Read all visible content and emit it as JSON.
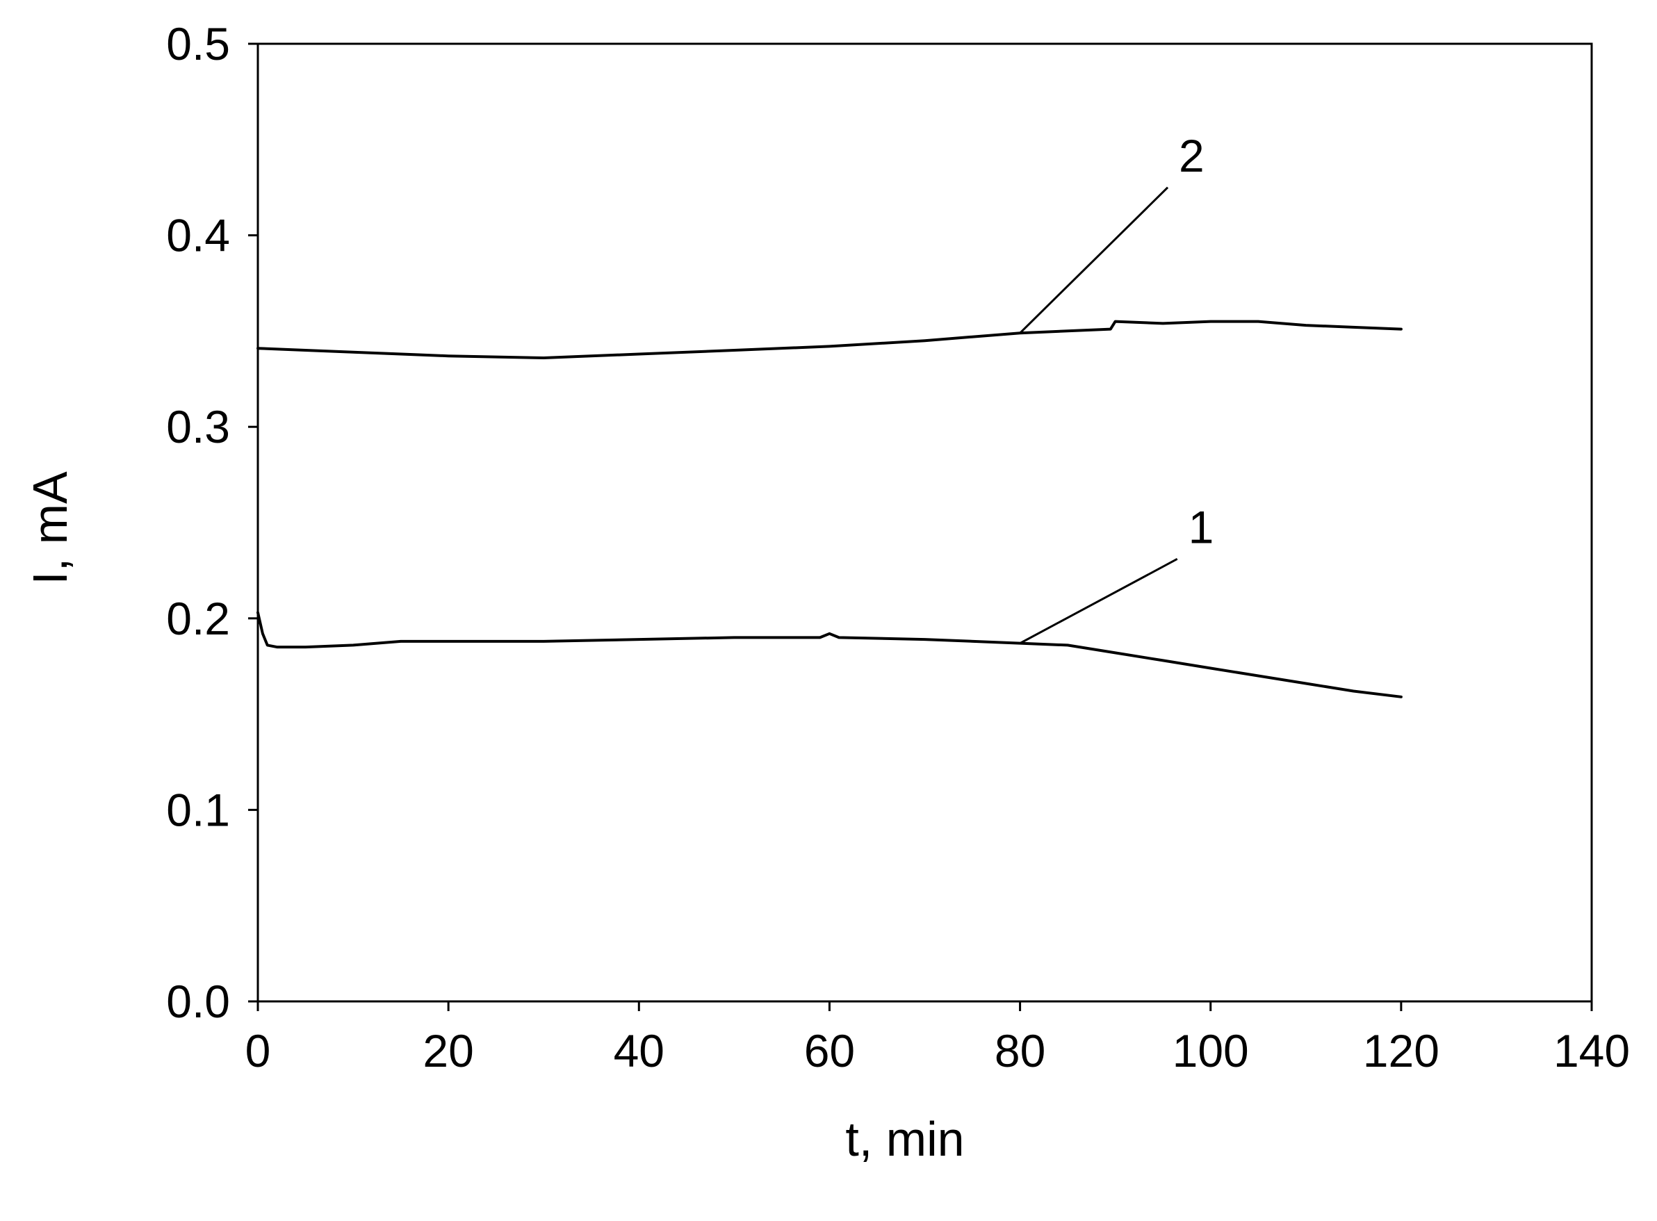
{
  "chart_data": {
    "type": "line",
    "title": "",
    "xlabel": "t, min",
    "ylabel": "I, mA",
    "xlim": [
      0,
      140
    ],
    "ylim": [
      0.0,
      0.5
    ],
    "x_ticks": [
      0,
      20,
      40,
      60,
      80,
      100,
      120,
      140
    ],
    "x_tick_labels": [
      "0",
      "20",
      "40",
      "60",
      "80",
      "100",
      "120",
      "140"
    ],
    "y_ticks": [
      0.0,
      0.1,
      0.2,
      0.3,
      0.4,
      0.5
    ],
    "y_tick_labels": [
      "0.0",
      "0.1",
      "0.2",
      "0.3",
      "0.4",
      "0.5"
    ],
    "grid": false,
    "legend": "none",
    "line_color": "#000000",
    "series": [
      {
        "label": "1",
        "x": [
          0,
          0.5,
          1,
          2,
          5,
          10,
          15,
          20,
          30,
          40,
          50,
          59,
          60,
          61,
          70,
          80,
          85,
          90,
          95,
          100,
          105,
          110,
          115,
          120
        ],
        "y": [
          0.203,
          0.192,
          0.186,
          0.185,
          0.185,
          0.186,
          0.188,
          0.188,
          0.188,
          0.189,
          0.19,
          0.19,
          0.192,
          0.19,
          0.189,
          0.187,
          0.186,
          0.182,
          0.178,
          0.174,
          0.17,
          0.166,
          0.162,
          0.159
        ]
      },
      {
        "label": "2",
        "x": [
          0,
          5,
          10,
          20,
          30,
          40,
          50,
          60,
          70,
          80,
          89.5,
          90,
          95,
          100,
          105,
          110,
          115,
          120
        ],
        "y": [
          0.341,
          0.34,
          0.339,
          0.337,
          0.336,
          0.338,
          0.34,
          0.342,
          0.345,
          0.349,
          0.351,
          0.355,
          0.354,
          0.355,
          0.355,
          0.353,
          0.352,
          0.351
        ]
      }
    ],
    "annotations": [
      {
        "text": "1",
        "line_from": [
          80,
          0.187
        ],
        "line_to": [
          96.5,
          0.231
        ],
        "label_at": [
          99,
          0.248
        ]
      },
      {
        "text": "2",
        "line_from": [
          80,
          0.349
        ],
        "line_to": [
          95.5,
          0.425
        ],
        "label_at": [
          98,
          0.442
        ]
      }
    ]
  }
}
